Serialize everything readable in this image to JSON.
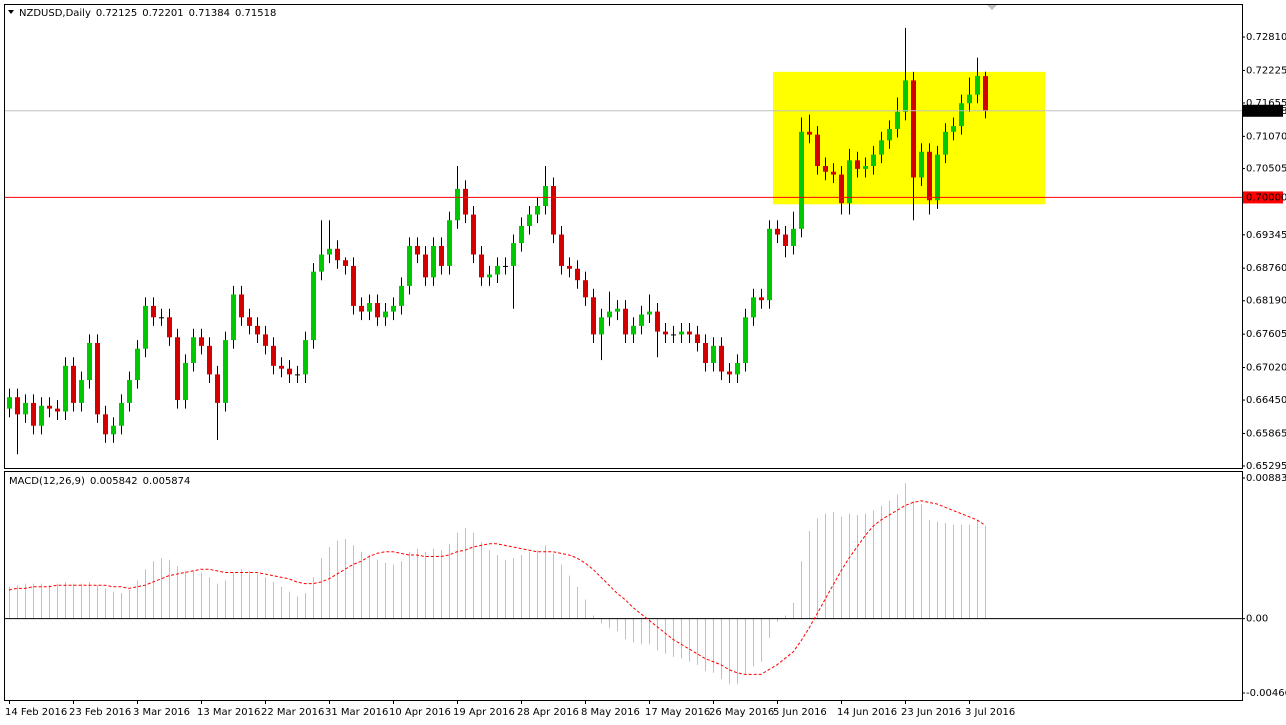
{
  "chart_data": [
    {
      "type": "candlestick",
      "title": "NZDUSD,Daily",
      "categories": [
        "14 Feb 2016",
        null,
        null,
        null,
        null,
        null,
        null,
        null,
        "23 Feb 2016",
        null,
        null,
        null,
        null,
        null,
        null,
        null,
        "3 Mar 2016",
        null,
        null,
        null,
        null,
        null,
        null,
        null,
        "13 Mar 2016",
        null,
        null,
        null,
        null,
        null,
        null,
        null,
        "22 Mar 2016",
        null,
        null,
        null,
        null,
        null,
        null,
        null,
        "31 Mar 2016",
        null,
        null,
        null,
        null,
        null,
        null,
        null,
        "10 Apr 2016",
        null,
        null,
        null,
        null,
        null,
        null,
        null,
        "19 Apr 2016",
        null,
        null,
        null,
        null,
        null,
        null,
        null,
        "28 Apr 2016",
        null,
        null,
        null,
        null,
        null,
        null,
        null,
        "8 May 2016",
        null,
        null,
        null,
        null,
        null,
        null,
        null,
        "17 May 2016",
        null,
        null,
        null,
        null,
        null,
        null,
        null,
        "26 May 2016",
        null,
        null,
        null,
        null,
        null,
        null,
        null,
        "5 Jun 2016",
        null,
        null,
        null,
        null,
        null,
        null,
        null,
        "14 Jun 2016",
        null,
        null,
        null,
        null,
        null,
        null,
        null,
        "23 Jun 2016",
        null,
        null,
        null,
        null,
        null,
        null,
        null,
        "3 Jul 2016",
        null,
        null
      ],
      "open": [
        0.663,
        0.665,
        0.662,
        0.664,
        0.66,
        0.6635,
        0.663,
        0.6625,
        0.6705,
        0.664,
        0.668,
        0.6745,
        0.662,
        0.6585,
        0.66,
        0.664,
        0.668,
        0.6735,
        0.681,
        0.679,
        0.679,
        0.6755,
        0.6645,
        0.671,
        0.6755,
        0.674,
        0.669,
        0.664,
        0.675,
        0.683,
        0.679,
        0.6775,
        0.676,
        0.674,
        0.6705,
        0.67,
        0.669,
        0.669,
        0.675,
        0.687,
        0.69,
        0.691,
        0.689,
        0.688,
        0.681,
        0.68,
        0.6815,
        0.679,
        0.68,
        0.681,
        0.6845,
        0.6915,
        0.69,
        0.686,
        0.6915,
        0.688,
        0.696,
        0.7015,
        0.697,
        0.69,
        0.686,
        0.6865,
        0.688,
        0.688,
        0.692,
        0.695,
        0.697,
        0.6985,
        0.702,
        0.6935,
        0.688,
        0.6875,
        0.6855,
        0.6825,
        0.676,
        0.679,
        0.68,
        0.6805,
        0.676,
        0.6775,
        0.6795,
        0.68,
        0.6765,
        0.676,
        0.676,
        0.6765,
        0.676,
        0.6745,
        0.671,
        0.674,
        0.6695,
        0.669,
        0.671,
        0.679,
        0.6825,
        0.682,
        0.6945,
        0.6935,
        0.6915,
        0.6945,
        0.7115,
        0.711,
        0.7055,
        0.7045,
        0.704,
        0.699,
        0.7065,
        0.705,
        0.7055,
        0.7075,
        0.71,
        0.712,
        0.715,
        0.7205,
        0.7035,
        0.708,
        0.6995,
        0.7075,
        0.7115,
        0.7125,
        0.7165,
        0.718,
        0.72125
      ],
      "high": [
        0.6665,
        0.6665,
        0.6655,
        0.6655,
        0.665,
        0.665,
        0.6645,
        0.672,
        0.672,
        0.6695,
        0.676,
        0.676,
        0.6635,
        0.6615,
        0.6655,
        0.6695,
        0.675,
        0.6825,
        0.6825,
        0.6805,
        0.6805,
        0.677,
        0.6725,
        0.677,
        0.677,
        0.6755,
        0.6705,
        0.6765,
        0.6845,
        0.6845,
        0.6805,
        0.679,
        0.6775,
        0.6755,
        0.672,
        0.6715,
        0.6705,
        0.6765,
        0.6885,
        0.696,
        0.696,
        0.6925,
        0.6895,
        0.6895,
        0.6825,
        0.683,
        0.683,
        0.6815,
        0.6825,
        0.686,
        0.693,
        0.693,
        0.6915,
        0.693,
        0.693,
        0.6975,
        0.7055,
        0.703,
        0.6985,
        0.6915,
        0.688,
        0.6895,
        0.6895,
        0.6935,
        0.6965,
        0.6985,
        0.7,
        0.7055,
        0.7035,
        0.695,
        0.6895,
        0.689,
        0.687,
        0.684,
        0.6805,
        0.6835,
        0.682,
        0.682,
        0.679,
        0.681,
        0.683,
        0.6815,
        0.678,
        0.6775,
        0.678,
        0.678,
        0.6775,
        0.676,
        0.6755,
        0.6755,
        0.671,
        0.6725,
        0.6805,
        0.684,
        0.684,
        0.696,
        0.696,
        0.695,
        0.6975,
        0.714,
        0.7145,
        0.7125,
        0.707,
        0.706,
        0.7055,
        0.7085,
        0.708,
        0.707,
        0.709,
        0.7115,
        0.7135,
        0.7175,
        0.7297,
        0.722,
        0.7095,
        0.7095,
        0.709,
        0.713,
        0.714,
        0.718,
        0.721,
        0.7245,
        0.72201
      ],
      "low": [
        0.6615,
        0.655,
        0.6605,
        0.6585,
        0.6585,
        0.6615,
        0.661,
        0.661,
        0.6625,
        0.6625,
        0.6665,
        0.6605,
        0.657,
        0.657,
        0.6585,
        0.6625,
        0.6665,
        0.672,
        0.6775,
        0.6775,
        0.674,
        0.663,
        0.663,
        0.6695,
        0.6725,
        0.6675,
        0.6575,
        0.6625,
        0.6735,
        0.6775,
        0.676,
        0.6745,
        0.6725,
        0.669,
        0.6685,
        0.6675,
        0.6675,
        0.6675,
        0.6735,
        0.6855,
        0.6885,
        0.6875,
        0.6865,
        0.6795,
        0.6785,
        0.6785,
        0.6775,
        0.6775,
        0.6785,
        0.6795,
        0.683,
        0.6885,
        0.6845,
        0.6845,
        0.6865,
        0.6865,
        0.6945,
        0.6955,
        0.6885,
        0.6845,
        0.6845,
        0.685,
        0.6865,
        0.6805,
        0.6905,
        0.6935,
        0.6955,
        0.697,
        0.692,
        0.6865,
        0.686,
        0.684,
        0.681,
        0.6745,
        0.6715,
        0.6775,
        0.6785,
        0.6745,
        0.6745,
        0.676,
        0.678,
        0.672,
        0.6745,
        0.6745,
        0.6745,
        0.6745,
        0.673,
        0.6695,
        0.6695,
        0.668,
        0.6675,
        0.6675,
        0.6695,
        0.6775,
        0.6805,
        0.6805,
        0.692,
        0.6895,
        0.69,
        0.693,
        0.7095,
        0.704,
        0.703,
        0.7025,
        0.697,
        0.697,
        0.7035,
        0.7035,
        0.704,
        0.706,
        0.7085,
        0.7105,
        0.7135,
        0.696,
        0.702,
        0.697,
        0.698,
        0.706,
        0.71,
        0.711,
        0.715,
        0.7165,
        0.71384
      ],
      "close": [
        0.665,
        0.662,
        0.664,
        0.66,
        0.6635,
        0.663,
        0.6625,
        0.6705,
        0.664,
        0.668,
        0.6745,
        0.662,
        0.6585,
        0.66,
        0.664,
        0.668,
        0.6735,
        0.681,
        0.679,
        0.679,
        0.6755,
        0.6645,
        0.671,
        0.6755,
        0.674,
        0.669,
        0.664,
        0.675,
        0.683,
        0.679,
        0.6775,
        0.676,
        0.674,
        0.6705,
        0.67,
        0.669,
        0.669,
        0.675,
        0.687,
        0.69,
        0.691,
        0.689,
        0.688,
        0.681,
        0.68,
        0.6815,
        0.679,
        0.68,
        0.681,
        0.6845,
        0.6915,
        0.69,
        0.686,
        0.6915,
        0.688,
        0.696,
        0.7015,
        0.697,
        0.69,
        0.686,
        0.6865,
        0.688,
        0.688,
        0.692,
        0.695,
        0.697,
        0.6985,
        0.702,
        0.6935,
        0.688,
        0.6875,
        0.6855,
        0.6825,
        0.676,
        0.679,
        0.68,
        0.6805,
        0.676,
        0.6775,
        0.6795,
        0.68,
        0.6765,
        0.676,
        0.676,
        0.6765,
        0.676,
        0.6745,
        0.671,
        0.674,
        0.6695,
        0.669,
        0.671,
        0.679,
        0.6825,
        0.682,
        0.6945,
        0.6935,
        0.6915,
        0.6945,
        0.7115,
        0.711,
        0.7055,
        0.7045,
        0.704,
        0.699,
        0.7065,
        0.705,
        0.7055,
        0.7075,
        0.71,
        0.712,
        0.715,
        0.7205,
        0.7035,
        0.708,
        0.6995,
        0.7075,
        0.7115,
        0.7125,
        0.7165,
        0.718,
        0.7213,
        0.71518
      ],
      "up_color": "#00c800",
      "down_color": "#d40000",
      "wick_color": "#000000",
      "ylim": [
        0.6526,
        0.73371
      ],
      "yticks": [
        {
          "value": 0.7281,
          "label": "0.72810"
        },
        0.72225,
        0.71655,
        {
          "value": 0.7107,
          "label": "0.71070"
        },
        0.70505,
        0.69345,
        {
          "value": 0.6876,
          "label": "0.68760"
        },
        {
          "value": 0.6819,
          "label": "0.68190"
        },
        0.67605,
        {
          "value": 0.6702,
          "label": "0.67020"
        },
        {
          "value": 0.6645,
          "label": "0.66450"
        },
        0.65865,
        0.65295
      ],
      "hline": {
        "value": 0.7,
        "label": "0.70000",
        "color": "#ff0000"
      },
      "highlight": {
        "ylim": [
          0.6988,
          0.722
        ],
        "color": "#ffff00"
      }
    },
    {
      "type": "macd",
      "title": "MACD(12,26,9)",
      "histogram": {
        "color": "#c0c0c0",
        "values": [
          0.002,
          0.0021,
          0.0022,
          0.0022,
          0.0022,
          0.0021,
          0.0022,
          0.0023,
          0.0022,
          0.0022,
          0.0023,
          0.0021,
          0.0019,
          0.0017,
          0.0016,
          0.0018,
          0.0024,
          0.0031,
          0.0036,
          0.0038,
          0.0037,
          0.0033,
          0.003,
          0.003,
          0.0029,
          0.0026,
          0.0022,
          0.0024,
          0.0029,
          0.0031,
          0.003,
          0.0028,
          0.0026,
          0.0023,
          0.002,
          0.0017,
          0.0014,
          0.0016,
          0.0026,
          0.0038,
          0.0045,
          0.0049,
          0.005,
          0.0046,
          0.0042,
          0.004,
          0.0037,
          0.0035,
          0.0034,
          0.0036,
          0.0042,
          0.0044,
          0.0042,
          0.0044,
          0.0043,
          0.0047,
          0.0054,
          0.0057,
          0.0054,
          0.0048,
          0.0043,
          0.004,
          0.0037,
          0.0038,
          0.004,
          0.0042,
          0.0043,
          0.0046,
          0.0041,
          0.0034,
          0.0027,
          0.002,
          0.0012,
          0.0002,
          -0.0003,
          -0.0006,
          -0.0008,
          -0.0013,
          -0.0015,
          -0.0016,
          -0.0016,
          -0.002,
          -0.0022,
          -0.0024,
          -0.0025,
          -0.0027,
          -0.0029,
          -0.0033,
          -0.0034,
          -0.0038,
          -0.0041,
          -0.0041,
          -0.0035,
          -0.003,
          -0.0027,
          -0.0012,
          -0.0002,
          0.0002,
          0.001,
          0.0036,
          0.0055,
          0.0063,
          0.0066,
          0.0067,
          0.0064,
          0.0066,
          0.0065,
          0.0066,
          0.0068,
          0.0071,
          0.0074,
          0.0078,
          0.0085,
          0.0074,
          0.0072,
          0.0062,
          0.0061,
          0.006,
          0.0059,
          0.0059,
          0.0059,
          0.0062,
          0.005842
        ]
      },
      "signal": {
        "color": "#ff0000",
        "values": [
          0.0018,
          0.0019,
          0.0019,
          0.002,
          0.002,
          0.002,
          0.0021,
          0.0021,
          0.0021,
          0.0021,
          0.0021,
          0.0021,
          0.0021,
          0.002,
          0.002,
          0.0019,
          0.002,
          0.0021,
          0.0023,
          0.0025,
          0.0027,
          0.0028,
          0.0029,
          0.003,
          0.0031,
          0.0031,
          0.003,
          0.0029,
          0.0029,
          0.0029,
          0.0029,
          0.0029,
          0.0028,
          0.0027,
          0.0026,
          0.0025,
          0.0023,
          0.0022,
          0.0022,
          0.0023,
          0.0025,
          0.0028,
          0.0031,
          0.0034,
          0.0036,
          0.0039,
          0.0041,
          0.0042,
          0.0042,
          0.0041,
          0.004,
          0.004,
          0.0039,
          0.0039,
          0.0039,
          0.004,
          0.0042,
          0.0043,
          0.0045,
          0.0046,
          0.0047,
          0.0047,
          0.0046,
          0.0045,
          0.0044,
          0.0043,
          0.0042,
          0.0042,
          0.0042,
          0.0041,
          0.004,
          0.0038,
          0.0035,
          0.0031,
          0.0026,
          0.0021,
          0.0016,
          0.0012,
          0.0007,
          0.0003,
          -0.0001,
          -0.0005,
          -0.0009,
          -0.0013,
          -0.0016,
          -0.0019,
          -0.0022,
          -0.0025,
          -0.0027,
          -0.0029,
          -0.0032,
          -0.0034,
          -0.0035,
          -0.0035,
          -0.0035,
          -0.0032,
          -0.0029,
          -0.0025,
          -0.0021,
          -0.0014,
          -0.0006,
          0.0003,
          0.0012,
          0.0021,
          0.003,
          0.0038,
          0.0045,
          0.0052,
          0.0058,
          0.0062,
          0.0065,
          0.0068,
          0.0071,
          0.0073,
          0.0074,
          0.0073,
          0.0072,
          0.007,
          0.0068,
          0.0066,
          0.0064,
          0.0062,
          0.005874
        ]
      },
      "ylim": [
        -0.00511,
        0.00921
      ],
      "yticks": [
        0.008833,
        {
          "value": 0,
          "label": "0.00"
        },
        -0.004669
      ]
    }
  ]
}
